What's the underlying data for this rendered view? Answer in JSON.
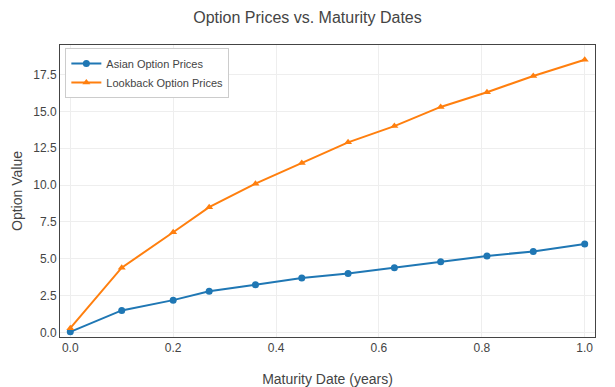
{
  "chart_data": {
    "type": "line",
    "title": "Option Prices vs. Maturity Dates",
    "x_label": "Maturity Date (years)",
    "y_label": "Option Value",
    "x": [
      0.0,
      0.1,
      0.2,
      0.27,
      0.36,
      0.45,
      0.54,
      0.63,
      0.72,
      0.81,
      0.9,
      1.0
    ],
    "series": [
      {
        "name": "Asian Option Prices",
        "color": "#1f77b4",
        "marker": "circle",
        "values": [
          0.05,
          1.5,
          2.2,
          2.8,
          3.25,
          3.7,
          4.0,
          4.4,
          4.8,
          5.2,
          5.5,
          6.0
        ]
      },
      {
        "name": "Lookback Option Prices",
        "color": "#ff7f0e",
        "marker": "triangle-up",
        "values": [
          0.3,
          4.4,
          6.8,
          8.5,
          10.1,
          11.5,
          12.9,
          14.0,
          15.3,
          16.3,
          17.4,
          18.5
        ]
      }
    ],
    "xlim": [
      -0.02,
      1.02
    ],
    "ylim": [
      -0.3,
      19.5
    ],
    "xticks": [
      {
        "value": 0.0,
        "label": "0.0"
      },
      0.2,
      0.4,
      0.6,
      0.8,
      {
        "value": 1.0,
        "label": "1.0"
      }
    ],
    "yticks": [
      {
        "value": 0.0,
        "label": "0.0"
      },
      2.5,
      {
        "value": 5.0,
        "label": "5.0"
      },
      7.5,
      {
        "value": 10.0,
        "label": "10.0"
      },
      12.5,
      {
        "value": 15.0,
        "label": "15.0"
      },
      17.5
    ],
    "grid": true,
    "legend": "upper left"
  }
}
